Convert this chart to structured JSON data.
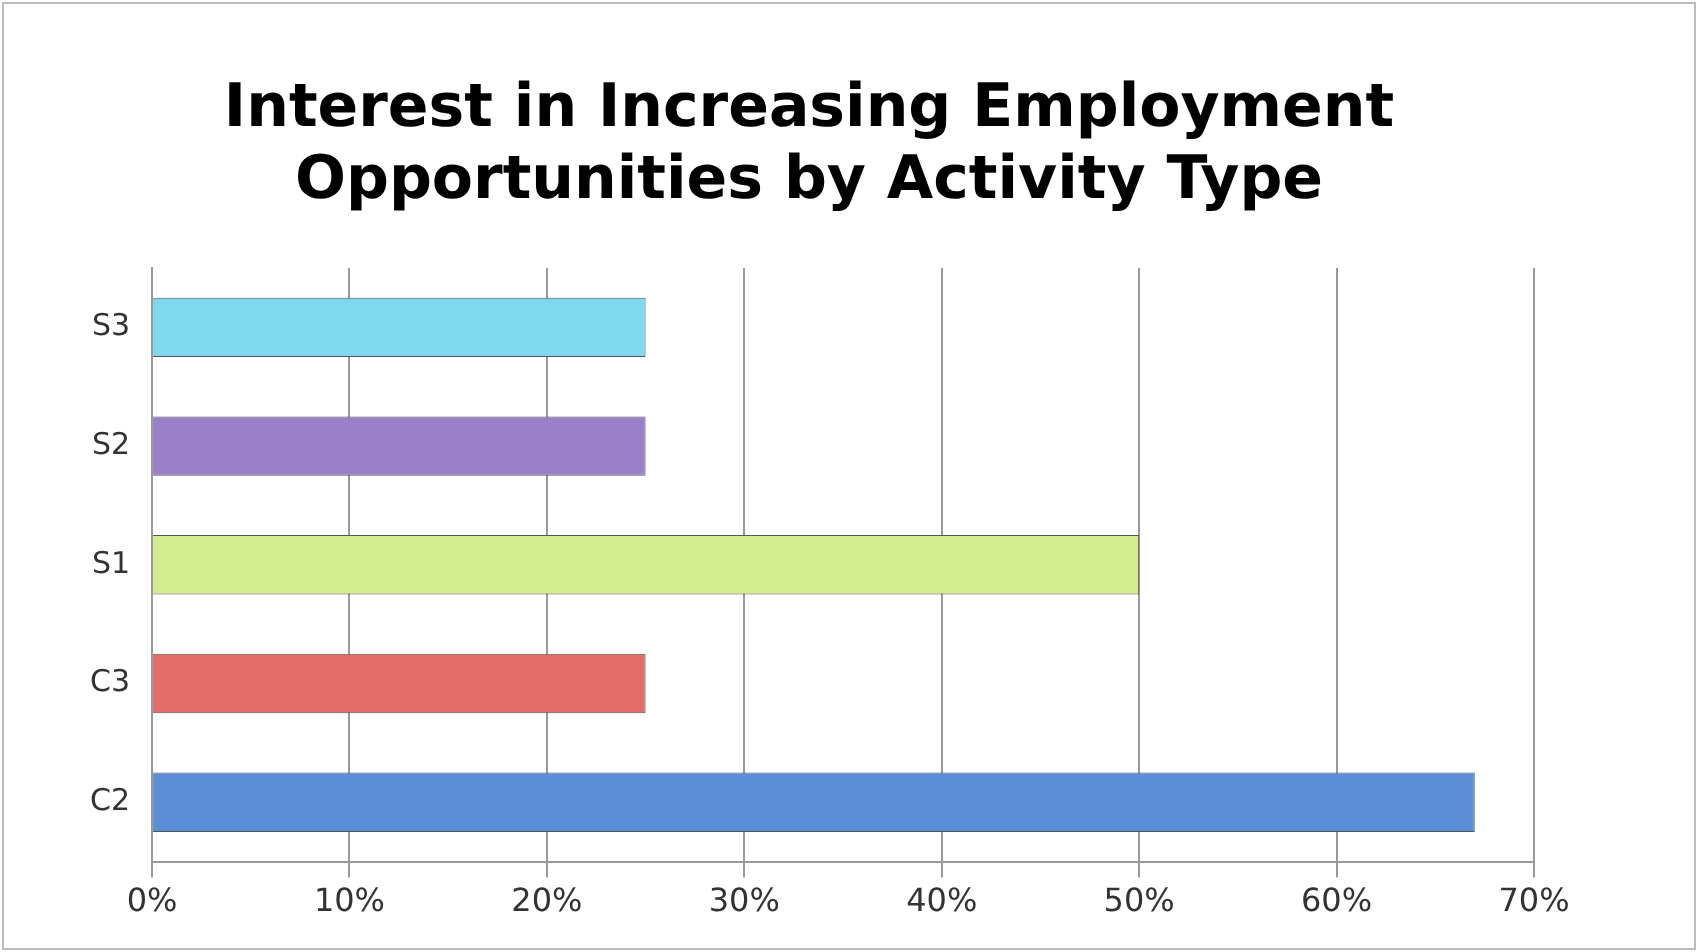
{
  "chart_data": {
    "type": "bar",
    "orientation": "horizontal",
    "title": "Interest in Increasing Employment Opportunities by Activity Type",
    "categories": [
      "S3",
      "S2",
      "S1",
      "C3",
      "C2"
    ],
    "values": [
      25,
      25,
      50,
      25,
      67
    ],
    "colors": [
      "#7fd8ef",
      "#9a80c8",
      "#d3ec8e",
      "#e36b68",
      "#5a8fd8"
    ],
    "xlim": [
      0,
      70
    ],
    "xticks": [
      {
        "value": 0,
        "label": "0%"
      },
      {
        "value": 10,
        "label": "10%"
      },
      {
        "value": 20,
        "label": "20%"
      },
      {
        "value": 30,
        "label": "30%"
      },
      {
        "value": 40,
        "label": "40%"
      },
      {
        "value": 50,
        "label": "50%"
      },
      {
        "value": 60,
        "label": "60%"
      },
      {
        "value": 70,
        "label": "70%"
      }
    ],
    "grid": "x",
    "legend": false
  }
}
